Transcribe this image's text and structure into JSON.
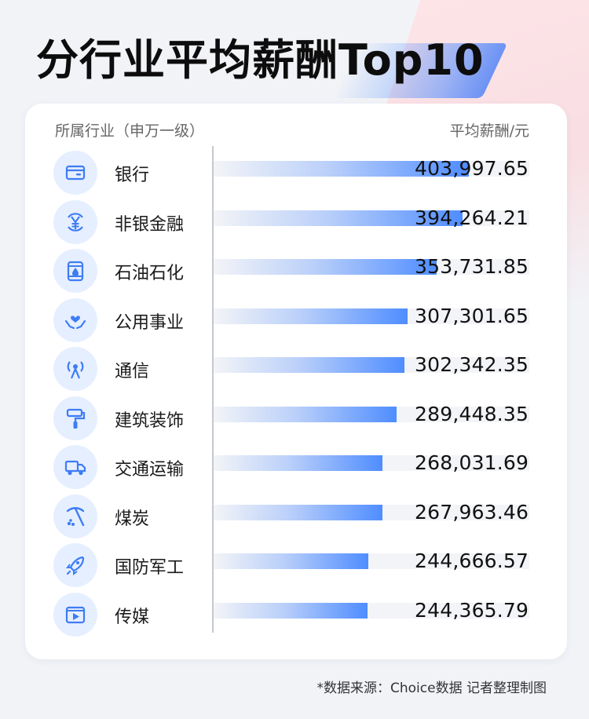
{
  "title": "分行业平均薪酬Top10",
  "header": {
    "left": "所属行业（申万一级）",
    "right": "平均薪酬/元"
  },
  "source": "*数据来源：Choice数据  记者整理制图",
  "colors": {
    "bar": "#4f8dff",
    "icon": "#3d7cf5",
    "icon_bg": "#e6efff",
    "track": "#f3f4f7"
  },
  "chart_data": {
    "type": "bar",
    "orientation": "horizontal",
    "title": "分行业平均薪酬Top10",
    "xlabel": "平均薪酬/元",
    "ylabel": "所属行业（申万一级）",
    "categories": [
      "银行",
      "非银金融",
      "石油石化",
      "公用事业",
      "通信",
      "建筑装饰",
      "交通运输",
      "煤炭",
      "国防军工",
      "传媒"
    ],
    "values": [
      403997.65,
      394264.21,
      353731.85,
      307301.65,
      302342.35,
      289448.35,
      268031.69,
      267963.46,
      244666.57,
      244365.79
    ],
    "value_labels": [
      "403,997.65",
      "394,264.21",
      "353,731.85",
      "307,301.65",
      "302,342.35",
      "289,448.35",
      "268,031.69",
      "267,963.46",
      "244,666.57",
      "244,365.79"
    ],
    "icons": [
      "wallet-icon",
      "yen-coin-icon",
      "oil-barrel-icon",
      "heart-hands-icon",
      "antenna-icon",
      "paint-roller-icon",
      "truck-icon",
      "pickaxe-icon",
      "rocket-icon",
      "video-play-icon"
    ],
    "xlim": [
      0,
      500000
    ],
    "grid": false,
    "legend": "none"
  }
}
